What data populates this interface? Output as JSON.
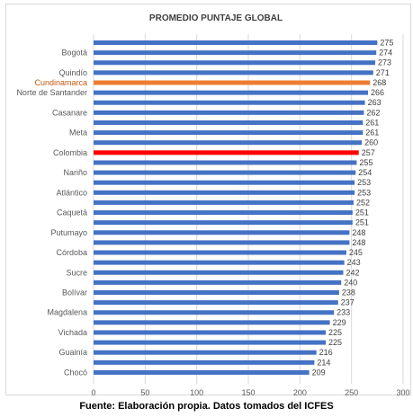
{
  "chart_data": {
    "type": "bar",
    "orientation": "horizontal",
    "title": "PROMEDIO PUNTAJE GLOBAL",
    "xlim": [
      0,
      300
    ],
    "xticks": [
      0,
      50,
      100,
      150,
      200,
      250,
      300
    ],
    "grid": "vertical",
    "colors": {
      "default": "#4472c4",
      "highlight_region": "#ed7d31",
      "highlight_national": "#ff0000",
      "region_label": "#c55a11"
    },
    "bars": [
      {
        "label": "",
        "value": 275
      },
      {
        "label": "Bogotá",
        "value": 274
      },
      {
        "label": "",
        "value": 273
      },
      {
        "label": "Quindío",
        "value": 271
      },
      {
        "label": "Cundinamarca",
        "value": 268,
        "highlight": "region"
      },
      {
        "label": "Norte de Santander",
        "value": 266
      },
      {
        "label": "",
        "value": 263
      },
      {
        "label": "Casanare",
        "value": 262
      },
      {
        "label": "",
        "value": 261
      },
      {
        "label": "Meta",
        "value": 261
      },
      {
        "label": "",
        "value": 260
      },
      {
        "label": "Colombia",
        "value": 257,
        "highlight": "national"
      },
      {
        "label": "",
        "value": 255
      },
      {
        "label": "Nariño",
        "value": 254
      },
      {
        "label": "",
        "value": 253
      },
      {
        "label": "Atlántico",
        "value": 253
      },
      {
        "label": "",
        "value": 252
      },
      {
        "label": "Caquetá",
        "value": 251
      },
      {
        "label": "",
        "value": 251
      },
      {
        "label": "Putumayo",
        "value": 248
      },
      {
        "label": "",
        "value": 248
      },
      {
        "label": "Córdoba",
        "value": 245
      },
      {
        "label": "",
        "value": 243
      },
      {
        "label": "Sucre",
        "value": 242
      },
      {
        "label": "",
        "value": 240
      },
      {
        "label": "Bolívar",
        "value": 238
      },
      {
        "label": "",
        "value": 237
      },
      {
        "label": "Magdalena",
        "value": 233
      },
      {
        "label": "",
        "value": 229
      },
      {
        "label": "Vichada",
        "value": 225
      },
      {
        "label": "",
        "value": 225
      },
      {
        "label": "Guainía",
        "value": 216
      },
      {
        "label": "",
        "value": 214
      },
      {
        "label": "Chocó",
        "value": 209
      }
    ]
  },
  "source_note": "Fuente: Elaboración propia. Datos tomados del ICFES"
}
